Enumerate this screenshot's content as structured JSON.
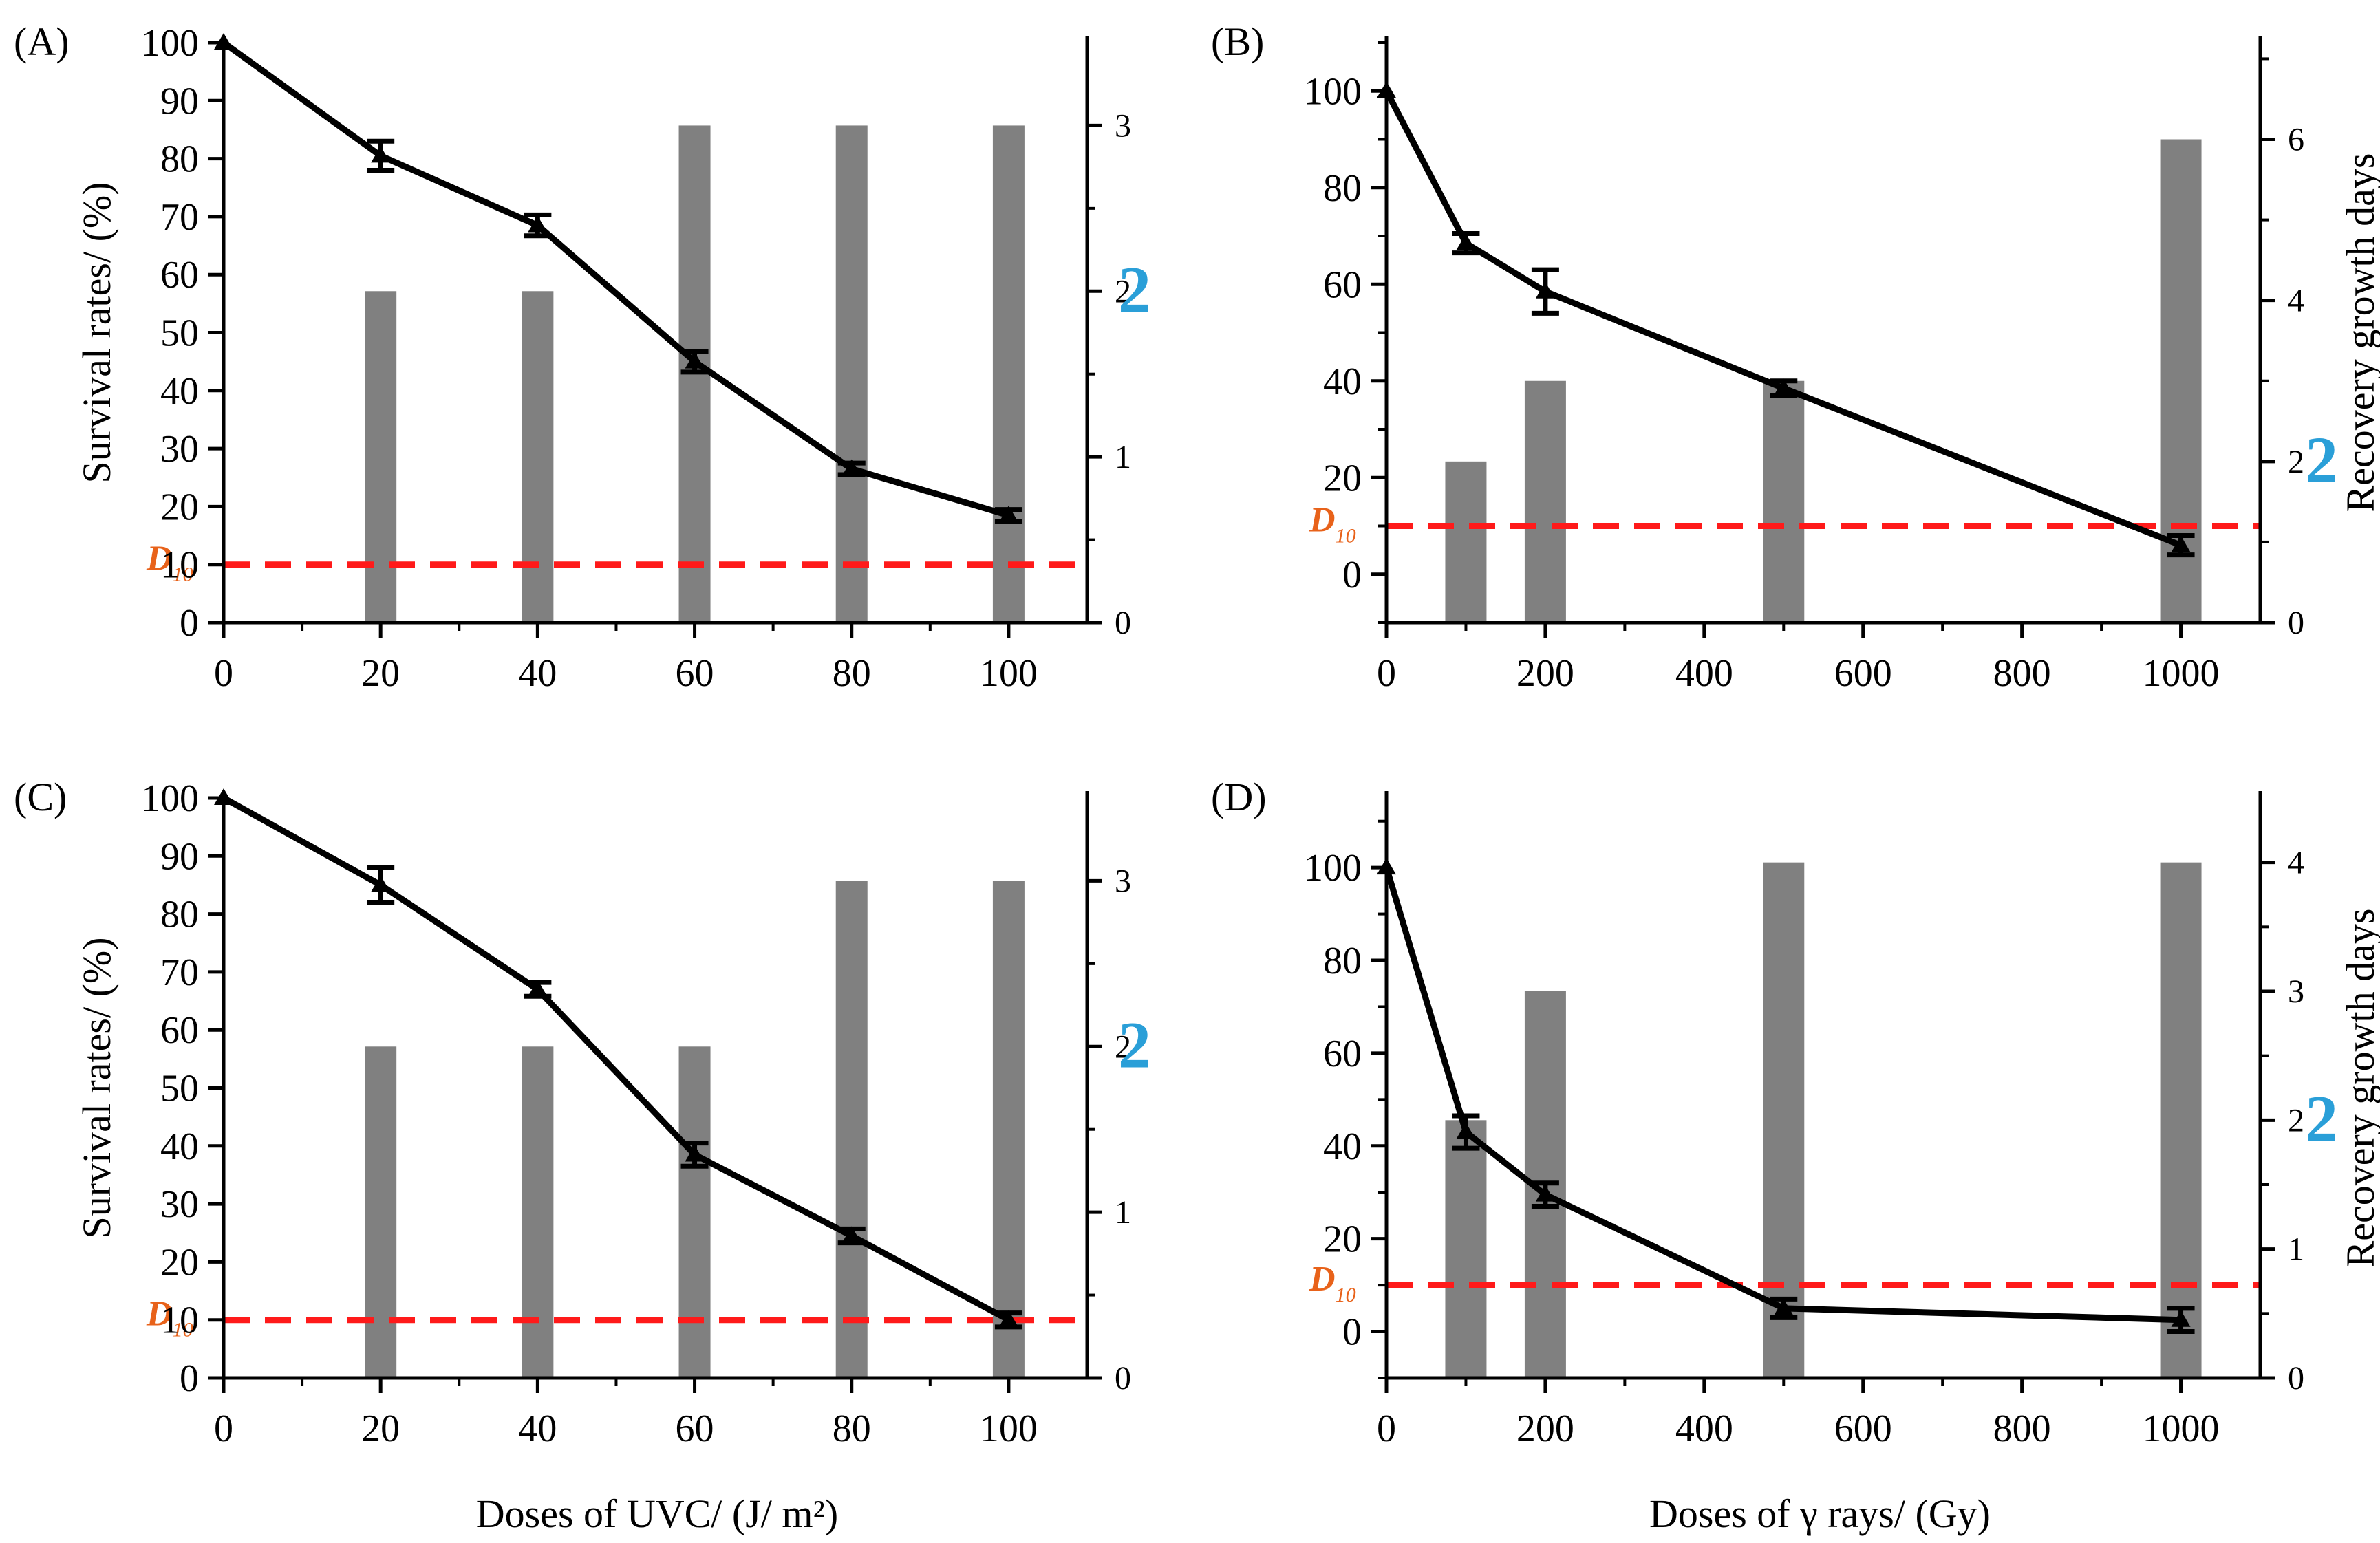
{
  "figure": {
    "bottom_xlabel_left": "Doses of UVC/ (J/ m²)",
    "bottom_xlabel_right": "Doses of γ rays/ (Gy)"
  },
  "chart_data": [
    {
      "panel": "(A)",
      "type": "bar+line",
      "ylabel_left": "Survival rates/ (%)",
      "ylabel_right": "",
      "x_ticks": [
        0,
        20,
        40,
        60,
        80,
        100
      ],
      "xlim": [
        0,
        110
      ],
      "y_left_ticks": [
        0,
        10,
        20,
        30,
        40,
        50,
        60,
        70,
        80,
        90,
        100
      ],
      "y_left_lim": [
        0,
        100
      ],
      "y_right_ticks": [
        0,
        1,
        2,
        3
      ],
      "y_right_lim": [
        0,
        3.5
      ],
      "survival": {
        "x": [
          0,
          20,
          40,
          60,
          80,
          100
        ],
        "y": [
          100,
          80.5,
          68.5,
          45,
          26.5,
          18.5
        ],
        "err": [
          0,
          2.5,
          1.8,
          1.8,
          1.0,
          1.0
        ]
      },
      "recovery_days": {
        "x": [
          20,
          40,
          60,
          80,
          100
        ],
        "values": [
          2,
          2,
          3,
          3,
          3
        ]
      },
      "d10_line": 10,
      "d10_label": "D",
      "d10_sub": "10",
      "annotation": "2",
      "bar_color": "#808080",
      "line_color": "#000000",
      "d10_color": "#ff1a1a"
    },
    {
      "panel": "(B)",
      "type": "bar+line",
      "ylabel_left": "",
      "ylabel_right": "Recovery growth days",
      "x_ticks": [
        0,
        200,
        400,
        600,
        800,
        1000
      ],
      "xlim": [
        0,
        1100
      ],
      "y_left_ticks": [
        0,
        20,
        40,
        60,
        80,
        100
      ],
      "y_left_lim": [
        -10,
        110
      ],
      "y_right_ticks": [
        0,
        2,
        4,
        6
      ],
      "y_right_lim": [
        0,
        7.2
      ],
      "survival": {
        "x": [
          0,
          100,
          200,
          500,
          1000
        ],
        "y": [
          100,
          68.5,
          58.5,
          38.5,
          6
        ],
        "err": [
          0,
          2,
          4.5,
          1.5,
          2
        ]
      },
      "recovery_days": {
        "x": [
          100,
          200,
          500,
          1000
        ],
        "values": [
          2,
          3,
          3,
          6
        ]
      },
      "d10_line": 10,
      "d10_label": "D",
      "d10_sub": "10",
      "annotation": "2",
      "bar_color": "#808080",
      "line_color": "#000000",
      "d10_color": "#ff1a1a"
    },
    {
      "panel": "(C)",
      "type": "bar+line",
      "ylabel_left": "Survival rates/ (%)",
      "ylabel_right": "",
      "x_ticks": [
        0,
        20,
        40,
        60,
        80,
        100
      ],
      "xlim": [
        0,
        110
      ],
      "y_left_ticks": [
        0,
        10,
        20,
        30,
        40,
        50,
        60,
        70,
        80,
        90,
        100
      ],
      "y_left_lim": [
        0,
        100
      ],
      "y_right_ticks": [
        0,
        1,
        2,
        3
      ],
      "y_right_lim": [
        0,
        3.5
      ],
      "survival": {
        "x": [
          0,
          20,
          40,
          60,
          80,
          100
        ],
        "y": [
          100,
          85,
          67,
          38.5,
          24.5,
          10
        ],
        "err": [
          0,
          3,
          1.2,
          2,
          1.2,
          1.2
        ]
      },
      "recovery_days": {
        "x": [
          20,
          40,
          60,
          80,
          100
        ],
        "values": [
          2,
          2,
          2,
          3,
          3
        ]
      },
      "d10_line": 10,
      "d10_label": "D",
      "d10_sub": "10",
      "annotation": "2",
      "bar_color": "#808080",
      "line_color": "#000000",
      "d10_color": "#ff1a1a"
    },
    {
      "panel": "(D)",
      "type": "bar+line",
      "ylabel_left": "",
      "ylabel_right": "Recovery growth days",
      "x_ticks": [
        0,
        200,
        400,
        600,
        800,
        1000
      ],
      "xlim": [
        0,
        1100
      ],
      "y_left_ticks": [
        0,
        20,
        40,
        60,
        80,
        100
      ],
      "y_left_lim": [
        -10,
        115
      ],
      "y_right_ticks": [
        0,
        1,
        2,
        3,
        4
      ],
      "y_right_lim": [
        0,
        4.5
      ],
      "survival": {
        "x": [
          0,
          100,
          200,
          500,
          1000
        ],
        "y": [
          100,
          43,
          29.5,
          5,
          2.5
        ],
        "err": [
          0,
          3.5,
          2.5,
          2,
          2.5
        ]
      },
      "recovery_days": {
        "x": [
          100,
          200,
          500,
          1000
        ],
        "values": [
          2,
          3,
          4,
          4
        ]
      },
      "d10_line": 10,
      "d10_label": "D",
      "d10_sub": "10",
      "annotation": "2",
      "bar_color": "#808080",
      "line_color": "#000000",
      "d10_color": "#ff1a1a"
    }
  ]
}
